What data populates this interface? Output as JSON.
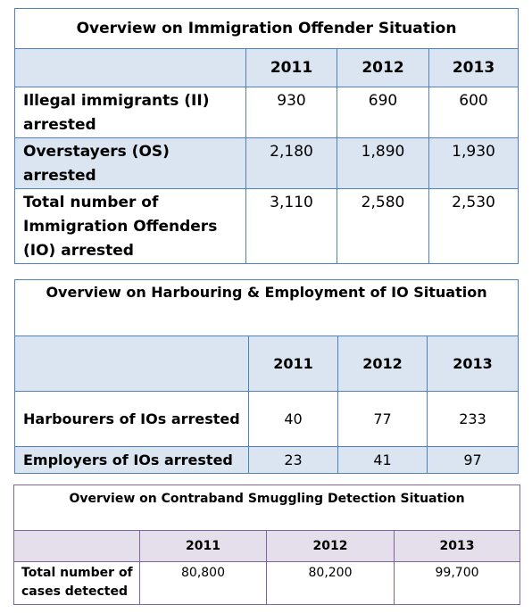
{
  "colors": {
    "blue_border": "#4f81bd",
    "blue_fill": "#dbe5f1",
    "purple_border": "#8064a2",
    "purple_fill": "#e5dfec"
  },
  "immigration": {
    "title": "Overview on Immigration Offender Situation",
    "years": [
      "2011",
      "2012",
      "2013"
    ],
    "rows": [
      {
        "label_lines": [
          "Illegal immigrants (II)",
          "arrested"
        ],
        "values": [
          "930",
          "690",
          "600"
        ]
      },
      {
        "label_lines": [
          "Overstayers (OS)",
          "arrested"
        ],
        "values": [
          "2,180",
          "1,890",
          "1,930"
        ]
      },
      {
        "label_lines": [
          "Total number of",
          "Immigration Offenders",
          "(IO) arrested"
        ],
        "values": [
          "3,110",
          "2,580",
          "2,530"
        ]
      }
    ]
  },
  "harbouring": {
    "title": "Overview on Harbouring & Employment of IO Situation",
    "years": [
      "2011",
      "2012",
      "2013"
    ],
    "rows": [
      {
        "label": "Harbourers of IOs arrested",
        "values": [
          "40",
          "77",
          "233"
        ]
      },
      {
        "label": "Employers of IOs arrested",
        "values": [
          "23",
          "41",
          "97"
        ]
      }
    ]
  },
  "contraband": {
    "title": "Overview on Contraband Smuggling Detection Situation",
    "years": [
      "2011",
      "2012",
      "2013"
    ],
    "rows": [
      {
        "label_lines": [
          "Total number of",
          "cases detected"
        ],
        "values": [
          "80,800",
          "80,200",
          "99,700"
        ]
      }
    ]
  }
}
